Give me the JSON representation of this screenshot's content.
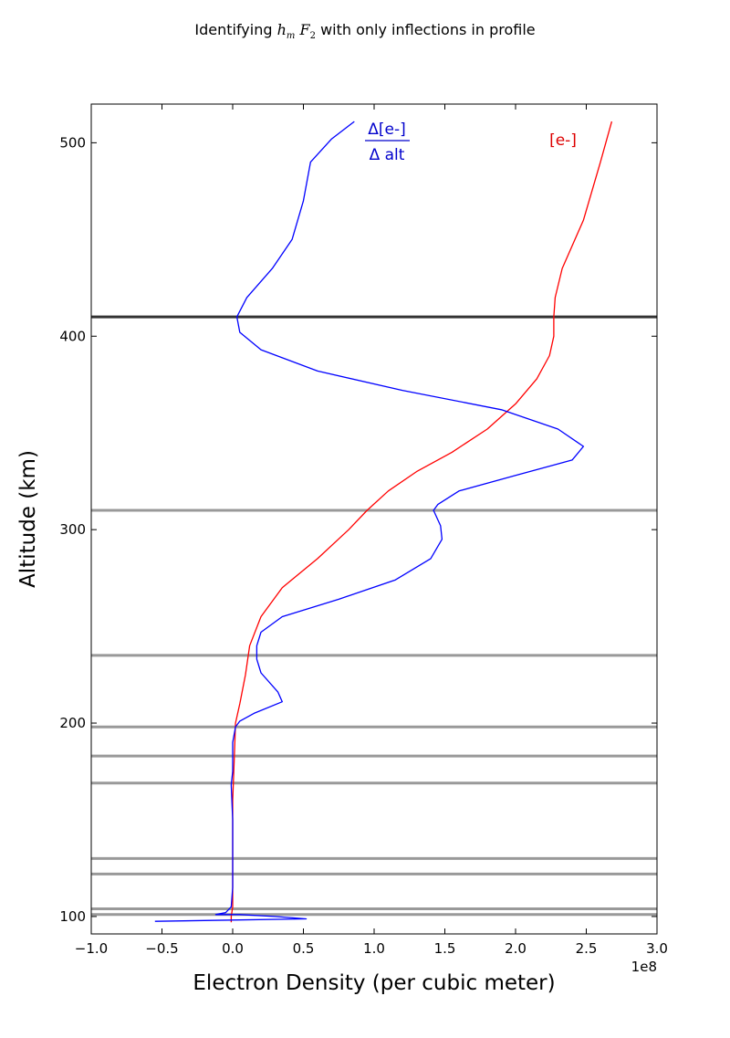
{
  "chart_data": {
    "type": "line",
    "title": "Identifying h_m F_2 with only inflections in profile",
    "title_parts": {
      "pre": "Identifying ",
      "h": "h",
      "m": "m",
      "F": "F",
      "two": "2",
      "post": " with only inflections in profile"
    },
    "xlabel": "Electron Density (per cubic meter)",
    "ylabel": "Altitude (km)",
    "x_offset_label": "1e8",
    "xlim": [
      -1.0,
      3.0
    ],
    "ylim": [
      91,
      520
    ],
    "x_ticks": [
      -1.0,
      -0.5,
      0.0,
      0.5,
      1.0,
      1.5,
      2.0,
      2.5,
      3.0
    ],
    "x_tick_labels": [
      "−1.0",
      "−0.5",
      "0.0",
      "0.5",
      "1.0",
      "1.5",
      "2.0",
      "2.5",
      "3.0"
    ],
    "y_ticks": [
      100,
      200,
      300,
      400,
      500
    ],
    "y_tick_labels": [
      "100",
      "200",
      "300",
      "400",
      "500"
    ],
    "grid": false,
    "hlines": [
      {
        "y": 410,
        "color": "#333333",
        "role": "identified hmF2"
      },
      {
        "y": 310,
        "color": "#999999"
      },
      {
        "y": 235,
        "color": "#999999"
      },
      {
        "y": 198,
        "color": "#999999"
      },
      {
        "y": 183,
        "color": "#999999"
      },
      {
        "y": 169,
        "color": "#999999"
      },
      {
        "y": 130,
        "color": "#999999"
      },
      {
        "y": 122,
        "color": "#999999"
      },
      {
        "y": 104,
        "color": "#999999"
      },
      {
        "y": 101,
        "color": "#999999"
      }
    ],
    "series": [
      {
        "color": "#ff0000",
        "points": [
          [
            2.68,
            511
          ],
          [
            2.6,
            490
          ],
          [
            2.48,
            460
          ],
          [
            2.33,
            435
          ],
          [
            2.28,
            420
          ],
          [
            2.27,
            410
          ],
          [
            2.27,
            400
          ],
          [
            2.24,
            390
          ],
          [
            2.15,
            378
          ],
          [
            2.0,
            365
          ],
          [
            1.8,
            352
          ],
          [
            1.55,
            340
          ],
          [
            1.3,
            330
          ],
          [
            1.1,
            320
          ],
          [
            0.95,
            310
          ],
          [
            0.82,
            300
          ],
          [
            0.6,
            285
          ],
          [
            0.35,
            270
          ],
          [
            0.2,
            255
          ],
          [
            0.12,
            240
          ],
          [
            0.09,
            225
          ],
          [
            0.05,
            210
          ],
          [
            0.02,
            200
          ],
          [
            0.01,
            180
          ],
          [
            0.0,
            160
          ],
          [
            0.0,
            140
          ],
          [
            0.0,
            120
          ],
          [
            0.0,
            105
          ],
          [
            -0.01,
            100
          ],
          [
            -0.01,
            97
          ]
        ]
      },
      {
        "color": "#0000ff",
        "points": [
          [
            0.86,
            511
          ],
          [
            0.7,
            502
          ],
          [
            0.55,
            490
          ],
          [
            0.5,
            470
          ],
          [
            0.42,
            450
          ],
          [
            0.28,
            435
          ],
          [
            0.1,
            420
          ],
          [
            0.03,
            410
          ],
          [
            0.05,
            402
          ],
          [
            0.2,
            393
          ],
          [
            0.6,
            382
          ],
          [
            1.2,
            372
          ],
          [
            1.9,
            362
          ],
          [
            2.3,
            352
          ],
          [
            2.48,
            343
          ],
          [
            2.4,
            336
          ],
          [
            2.0,
            328
          ],
          [
            1.6,
            320
          ],
          [
            1.45,
            313
          ],
          [
            1.42,
            310
          ],
          [
            1.47,
            302
          ],
          [
            1.48,
            295
          ],
          [
            1.4,
            285
          ],
          [
            1.15,
            274
          ],
          [
            0.75,
            264
          ],
          [
            0.35,
            255
          ],
          [
            0.2,
            247
          ],
          [
            0.17,
            240
          ],
          [
            0.17,
            233
          ],
          [
            0.2,
            226
          ],
          [
            0.32,
            216
          ],
          [
            0.35,
            211
          ],
          [
            0.15,
            205
          ],
          [
            0.05,
            201
          ],
          [
            0.02,
            198
          ],
          [
            0.0,
            190
          ],
          [
            0.0,
            175
          ],
          [
            -0.01,
            168
          ],
          [
            0.0,
            150
          ],
          [
            0.0,
            130
          ],
          [
            0.0,
            115
          ],
          [
            -0.01,
            105
          ],
          [
            -0.05,
            102
          ],
          [
            -0.12,
            101
          ],
          [
            0.05,
            101
          ],
          [
            0.3,
            100
          ],
          [
            0.52,
            98.8
          ],
          [
            -0.55,
            97.5
          ]
        ]
      }
    ],
    "annotations": {
      "derivative": {
        "numerator": "Δ[e-]",
        "denominator": "Δ alt",
        "color": "#0000cc"
      },
      "density": {
        "text": "[e-]",
        "color": "#dd0000"
      }
    }
  }
}
